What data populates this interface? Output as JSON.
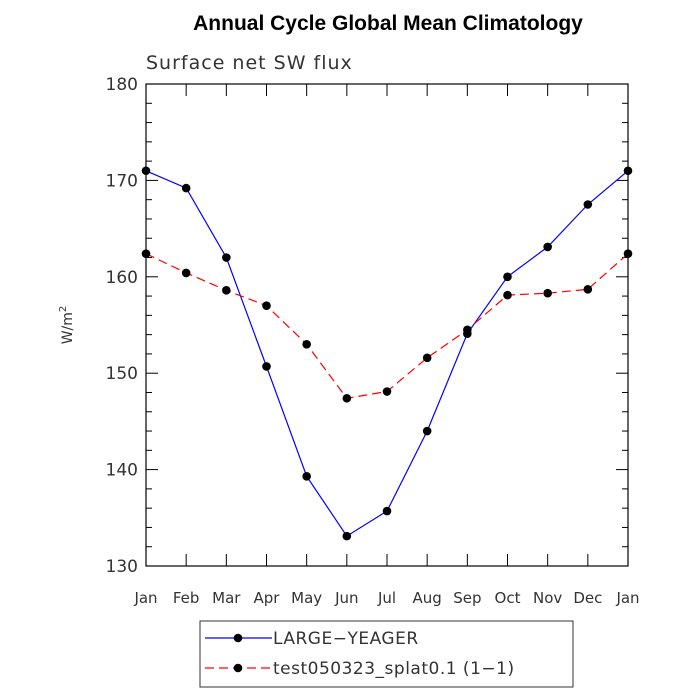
{
  "chart_data": {
    "type": "line",
    "title": "Annual Cycle Global Mean Climatology",
    "subtitle": "Surface net SW flux",
    "ylabel": "W/m",
    "ylabel_sup": "2",
    "xlabel": "",
    "categories": [
      "Jan",
      "Feb",
      "Mar",
      "Apr",
      "May",
      "Jun",
      "Jul",
      "Aug",
      "Sep",
      "Oct",
      "Nov",
      "Dec",
      "Jan"
    ],
    "ylim": [
      130,
      180
    ],
    "yticks": [
      130,
      140,
      150,
      160,
      170,
      180
    ],
    "grid": false,
    "legend_position": "bottom",
    "series": [
      {
        "name": "LARGE−YEAGER",
        "color": "#0000ff",
        "dash": "solid",
        "values": [
          171.0,
          169.2,
          162.0,
          150.7,
          139.3,
          133.1,
          135.7,
          144.0,
          154.1,
          160.0,
          163.1,
          167.5,
          171.0
        ]
      },
      {
        "name": "test050323_splat0.1 (1−1)",
        "color": "#ff0000",
        "dash": "dashed",
        "values": [
          162.4,
          160.4,
          158.6,
          157.0,
          153.0,
          147.4,
          148.1,
          151.6,
          154.5,
          158.1,
          158.3,
          158.7,
          162.4
        ]
      }
    ]
  }
}
